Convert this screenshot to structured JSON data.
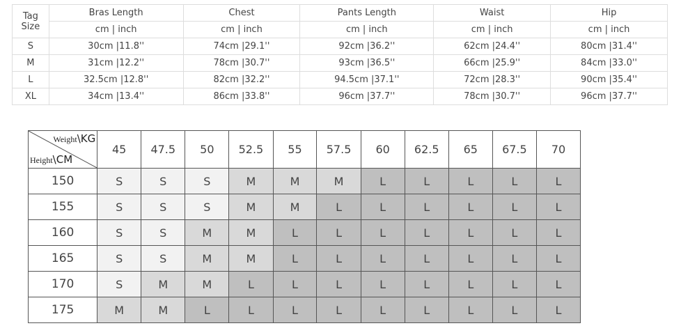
{
  "measurements": {
    "tag_header": [
      "Tag",
      "Size"
    ],
    "columns": [
      "Bras Length",
      "Chest",
      "Pants Length",
      "Waist",
      "Hip"
    ],
    "unit_label": "cm | inch",
    "rows": [
      {
        "size": "S",
        "values": [
          "30cm |11.8''",
          "74cm |29.1''",
          "92cm |36.2''",
          "62cm |24.4''",
          "80cm |31.4''"
        ]
      },
      {
        "size": "M",
        "values": [
          "31cm |12.2''",
          "78cm |30.7''",
          "93cm |36.5''",
          "66cm |25.9''",
          "84cm |33.0''"
        ]
      },
      {
        "size": "L",
        "values": [
          "32.5cm |12.8''",
          "82cm |32.2''",
          "94.5cm |37.1''",
          "72cm |28.3''",
          "90cm |35.4''"
        ]
      },
      {
        "size": "XL",
        "values": [
          "34cm |13.4''",
          "86cm |33.8''",
          "96cm |37.7''",
          "78cm |30.7''",
          "96cm |37.7''"
        ]
      }
    ]
  },
  "size_chart": {
    "weight_label": "Weight",
    "weight_unit": "KG",
    "height_label": "Height",
    "height_unit": "CM",
    "weights": [
      "45",
      "47.5",
      "50",
      "52.5",
      "55",
      "57.5",
      "60",
      "62.5",
      "65",
      "67.5",
      "70"
    ],
    "rows": [
      {
        "height": "150",
        "sizes": [
          "S",
          "S",
          "S",
          "M",
          "M",
          "M",
          "L",
          "L",
          "L",
          "L",
          "L"
        ]
      },
      {
        "height": "155",
        "sizes": [
          "S",
          "S",
          "S",
          "M",
          "M",
          "L",
          "L",
          "L",
          "L",
          "L",
          "L"
        ]
      },
      {
        "height": "160",
        "sizes": [
          "S",
          "S",
          "M",
          "M",
          "L",
          "L",
          "L",
          "L",
          "L",
          "L",
          "L"
        ]
      },
      {
        "height": "165",
        "sizes": [
          "S",
          "S",
          "M",
          "M",
          "L",
          "L",
          "L",
          "L",
          "L",
          "L",
          "L"
        ]
      },
      {
        "height": "170",
        "sizes": [
          "S",
          "M",
          "M",
          "L",
          "L",
          "L",
          "L",
          "L",
          "L",
          "L",
          "L"
        ]
      },
      {
        "height": "175",
        "sizes": [
          "M",
          "M",
          "L",
          "L",
          "L",
          "L",
          "L",
          "L",
          "L",
          "L",
          "L"
        ]
      }
    ],
    "colors": {
      "S": "#f2f2f2",
      "M": "#d9d9d9",
      "L": "#bfbfbf"
    }
  }
}
